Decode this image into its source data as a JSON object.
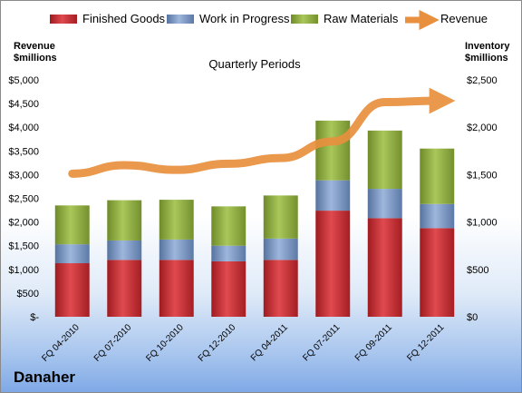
{
  "company": "Danaher",
  "chart_data": {
    "type": "bar",
    "stacked": true,
    "title": "Quarterly Periods",
    "categories": [
      "FQ 04-2010",
      "FQ 07-2010",
      "FQ 10-2010",
      "FQ 12-2010",
      "FQ 04-2011",
      "FQ 07-2011",
      "FQ 09-2011",
      "FQ 12-2011"
    ],
    "series": [
      {
        "name": "Finished Goods",
        "axis": "right",
        "color": "#c0272d",
        "values": [
          565,
          600,
          600,
          585,
          600,
          1120,
          1040,
          935
        ]
      },
      {
        "name": "Work in Progress",
        "axis": "right",
        "color": "#6f8fc0",
        "values": [
          200,
          205,
          215,
          165,
          225,
          320,
          310,
          255
        ]
      },
      {
        "name": "Raw Materials",
        "axis": "right",
        "color": "#8fae3c",
        "values": [
          410,
          425,
          420,
          415,
          455,
          630,
          615,
          585
        ]
      },
      {
        "name": "Revenue",
        "type": "line",
        "axis": "left",
        "color": "#e8903d",
        "values": [
          3020,
          3200,
          3100,
          3230,
          3350,
          3700,
          4530,
          4560
        ]
      }
    ],
    "left_axis": {
      "label": "Revenue\n$millions",
      "ylim": [
        0,
        5000
      ],
      "ticks": [
        0,
        500,
        1000,
        1500,
        2000,
        2500,
        3000,
        3500,
        4000,
        4500,
        5000
      ],
      "tick_labels": [
        "$-",
        "$500",
        "$1,000",
        "$1,500",
        "$2,000",
        "$2,500",
        "$3,000",
        "$3,500",
        "$4,000",
        "$4,500",
        "$5,000"
      ]
    },
    "right_axis": {
      "label": "Inventory\n$millions",
      "ylim": [
        0,
        2500
      ],
      "ticks": [
        0,
        500,
        1000,
        1500,
        2000,
        2500
      ],
      "tick_labels": [
        "$0",
        "$500",
        "$1,000",
        "$1,500",
        "$2,000",
        "$2,500"
      ]
    },
    "legend": [
      "Finished Goods",
      "Work in Progress",
      "Raw Materials",
      "Revenue"
    ],
    "legend_position": "top",
    "grid": false
  }
}
